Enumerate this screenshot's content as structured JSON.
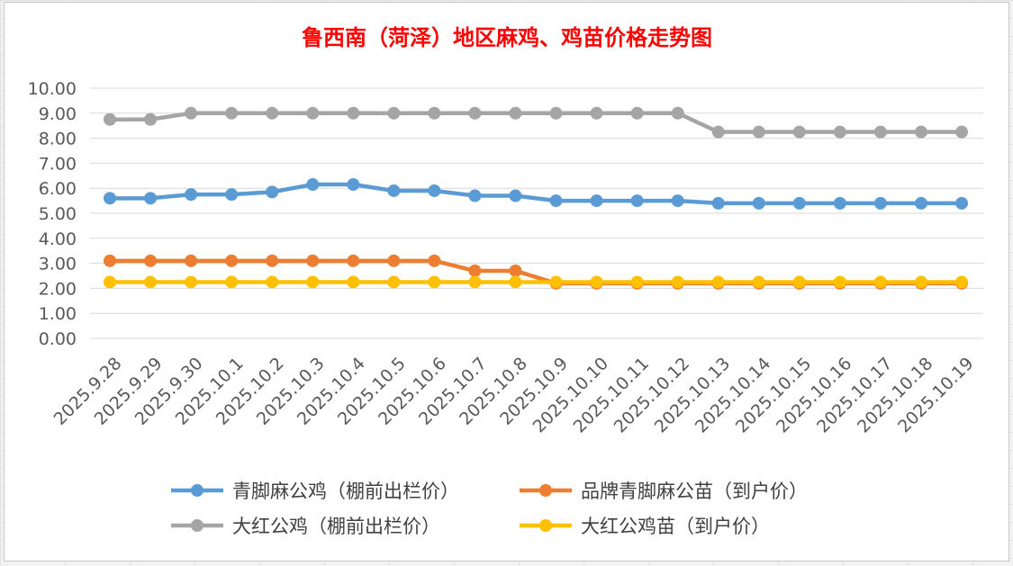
{
  "chart_data": {
    "type": "line",
    "title": "鲁西南（菏泽）地区麻鸡、鸡苗价格走势图",
    "xlabel": "",
    "ylabel": "",
    "ylim": [
      0,
      10
    ],
    "y_ticks": [
      "0.00",
      "1.00",
      "2.00",
      "3.00",
      "4.00",
      "5.00",
      "6.00",
      "7.00",
      "8.00",
      "9.00",
      "10.00"
    ],
    "grid": true,
    "legend_position": "bottom",
    "categories": [
      "2025.9.28",
      "2025.9.29",
      "2025.9.30",
      "2025.10.1",
      "2025.10.2",
      "2025.10.3",
      "2025.10.4",
      "2025.10.5",
      "2025.10.6",
      "2025.10.7",
      "2025.10.8",
      "2025.10.9",
      "2025.10.10",
      "2025.10.11",
      "2025.10.12",
      "2025.10.13",
      "2025.10.14",
      "2025.10.15",
      "2025.10.16",
      "2025.10.17",
      "2025.10.18",
      "2025.10.19"
    ],
    "series": [
      {
        "name": "青脚麻公鸡（棚前出栏价）",
        "color": "#5b9bd5",
        "values": [
          5.6,
          5.6,
          5.75,
          5.75,
          5.85,
          6.15,
          6.15,
          5.9,
          5.9,
          5.7,
          5.7,
          5.5,
          5.5,
          5.5,
          5.5,
          5.4,
          5.4,
          5.4,
          5.4,
          5.4,
          5.4,
          5.4
        ]
      },
      {
        "name": "品牌青脚麻公苗（到户价）",
        "color": "#ed7d31",
        "values": [
          3.1,
          3.1,
          3.1,
          3.1,
          3.1,
          3.1,
          3.1,
          3.1,
          3.1,
          2.7,
          2.7,
          2.2,
          2.2,
          2.2,
          2.2,
          2.2,
          2.2,
          2.2,
          2.2,
          2.2,
          2.2,
          2.2
        ]
      },
      {
        "name": "大红公鸡（棚前出栏价）",
        "color": "#a5a5a5",
        "values": [
          8.75,
          8.75,
          9.0,
          9.0,
          9.0,
          9.0,
          9.0,
          9.0,
          9.0,
          9.0,
          9.0,
          9.0,
          9.0,
          9.0,
          9.0,
          8.25,
          8.25,
          8.25,
          8.25,
          8.25,
          8.25,
          8.25
        ]
      },
      {
        "name": "大红公鸡苗（到户价）",
        "color": "#ffc000",
        "values": [
          2.25,
          2.25,
          2.25,
          2.25,
          2.25,
          2.25,
          2.25,
          2.25,
          2.25,
          2.25,
          2.25,
          2.25,
          2.25,
          2.25,
          2.25,
          2.25,
          2.25,
          2.25,
          2.25,
          2.25,
          2.25,
          2.25
        ]
      }
    ],
    "title_color": "#ff0000"
  }
}
